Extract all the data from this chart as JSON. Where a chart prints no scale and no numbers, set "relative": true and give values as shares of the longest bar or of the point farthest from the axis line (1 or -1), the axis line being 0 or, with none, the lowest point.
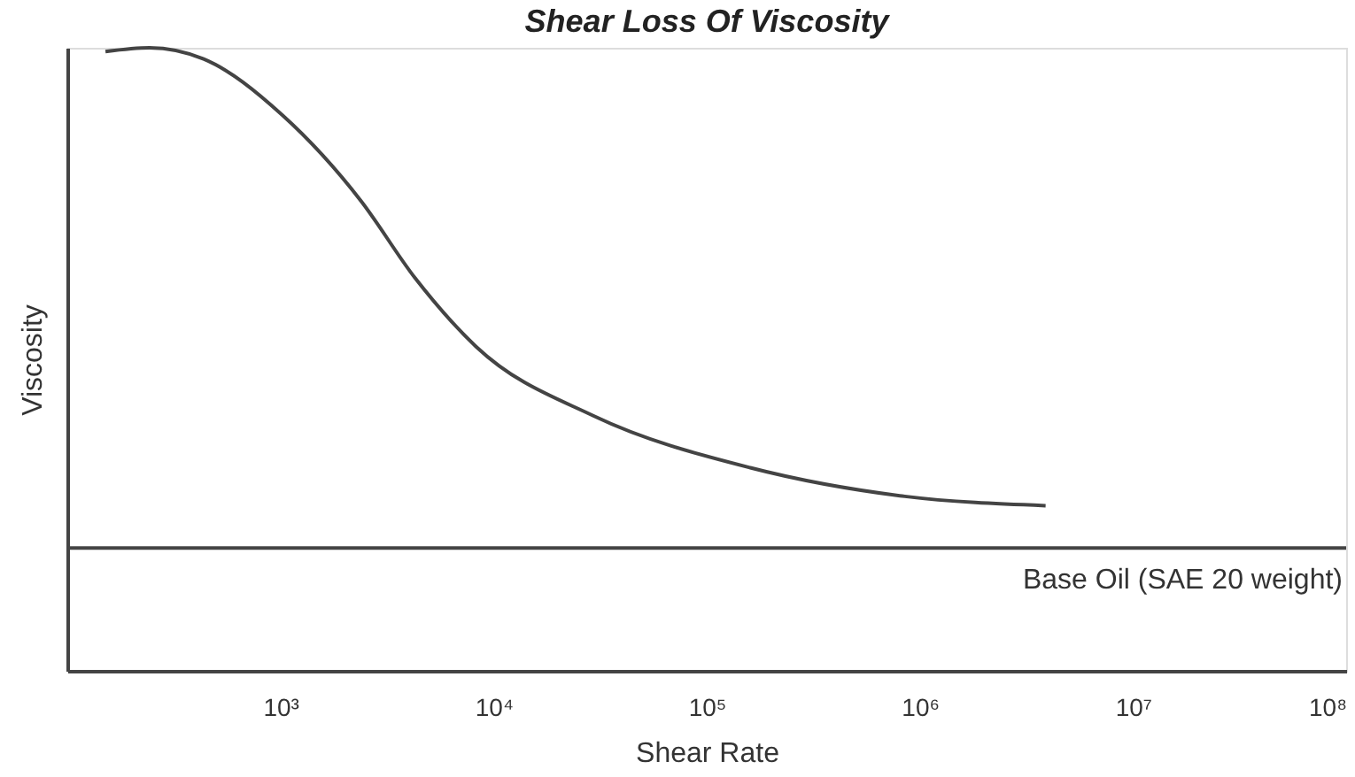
{
  "chart_data": {
    "type": "line",
    "title": "Shear Loss Of Viscosity",
    "xlabel": "Shear Rate",
    "ylabel": "Viscosity",
    "relative": true,
    "log": "x",
    "x": [
      151,
      243,
      436,
      1020,
      2390,
      4270,
      8300,
      29500,
      160000,
      850000,
      3890000
    ],
    "series": [
      {
        "color": "#444444",
        "values": [
          0.994,
          1.0,
          0.982,
          0.892,
          0.754,
          0.631,
          0.52,
          0.409,
          0.326,
          0.28,
          0.265
        ]
      }
    ],
    "xlim": [
      100,
      100000000
    ],
    "xticks": [
      {
        "value": 1000,
        "label": "10³"
      },
      {
        "value": 10000,
        "label": "10⁴"
      },
      {
        "value": 100000,
        "label": "10⁵"
      },
      {
        "value": 1000000,
        "label": "10⁶"
      },
      {
        "value": 10000000,
        "label": "10⁷"
      },
      {
        "value": 100000000,
        "label": "10⁸"
      }
    ],
    "ref_lines": [
      {
        "axis": "y",
        "value": 0.197,
        "label": "Base Oil (SAE 20 weight)",
        "color": "#444444"
      }
    ],
    "grid": false,
    "line_style": "solid",
    "marker": "none"
  }
}
